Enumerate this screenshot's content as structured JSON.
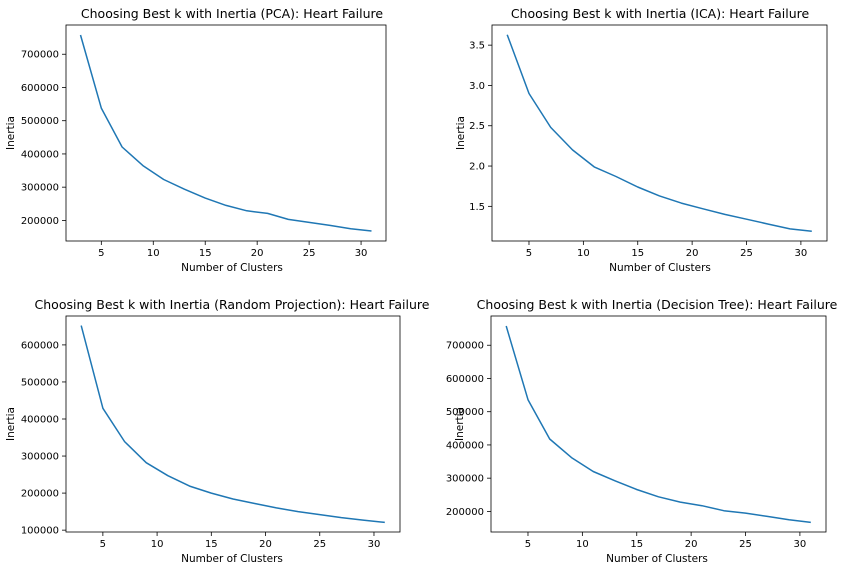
{
  "chart_data": [
    {
      "type": "line",
      "title": "Choosing Best k with Inertia (PCA): Heart Failure",
      "xlabel": "Number of Clusters",
      "ylabel": "Inertia",
      "x": [
        3,
        5,
        7,
        9,
        11,
        13,
        15,
        17,
        19,
        21,
        23,
        25,
        27,
        29,
        31
      ],
      "y": [
        758000,
        538000,
        421000,
        365000,
        323000,
        294000,
        267000,
        245000,
        229000,
        221000,
        203000,
        194000,
        185000,
        175000,
        168000
      ],
      "xlim": [
        1.6,
        32.4
      ],
      "ylim": [
        138000,
        788000
      ],
      "xticks": [
        5,
        10,
        15,
        20,
        25,
        30
      ],
      "yticks": [
        200000,
        300000,
        400000,
        500000,
        600000,
        700000
      ],
      "grid": false,
      "color": "#1f77b4"
    },
    {
      "type": "line",
      "title": "Choosing Best k with Inertia (ICA): Heart Failure",
      "xlabel": "Number of Clusters",
      "ylabel": "Inertia",
      "x": [
        3,
        5,
        7,
        9,
        11,
        13,
        15,
        17,
        19,
        21,
        23,
        25,
        27,
        29,
        31
      ],
      "y": [
        3.63,
        2.9,
        2.48,
        2.2,
        1.99,
        1.87,
        1.74,
        1.63,
        1.54,
        1.47,
        1.4,
        1.34,
        1.28,
        1.22,
        1.19
      ],
      "xlim": [
        1.6,
        32.4
      ],
      "ylim": [
        1.07,
        3.75
      ],
      "xticks": [
        5,
        10,
        15,
        20,
        25,
        30
      ],
      "yticks": [
        1.5,
        2.0,
        2.5,
        3.0,
        3.5
      ],
      "ytick_labels": [
        "1.5",
        "2.0",
        "2.5",
        "3.0",
        "3.5"
      ],
      "grid": false,
      "color": "#1f77b4"
    },
    {
      "type": "line",
      "title": "Choosing Best k with Inertia (Random Projection): Heart Failure",
      "xlabel": "Number of Clusters",
      "ylabel": "Inertia",
      "x": [
        3,
        5,
        7,
        9,
        11,
        13,
        15,
        17,
        19,
        21,
        23,
        25,
        27,
        29,
        31
      ],
      "y": [
        652000,
        429000,
        339000,
        282000,
        247000,
        219000,
        200000,
        184000,
        172000,
        160000,
        150000,
        142000,
        134000,
        127000,
        121000
      ],
      "xlim": [
        1.6,
        32.4
      ],
      "ylim": [
        95000,
        678000
      ],
      "xticks": [
        5,
        10,
        15,
        20,
        25,
        30
      ],
      "yticks": [
        100000,
        200000,
        300000,
        400000,
        500000,
        600000
      ],
      "grid": false,
      "color": "#1f77b4"
    },
    {
      "type": "line",
      "title": "Choosing Best k with Inertia (Decision Tree): Heart Failure",
      "xlabel": "Number of Clusters",
      "ylabel": "Inertia",
      "x": [
        3,
        5,
        7,
        9,
        11,
        13,
        15,
        17,
        19,
        21,
        23,
        25,
        27,
        29,
        31
      ],
      "y": [
        758000,
        536000,
        418000,
        362000,
        320000,
        292000,
        266000,
        244000,
        228000,
        217000,
        202000,
        195000,
        185000,
        175000,
        167000
      ],
      "xlim": [
        1.6,
        32.4
      ],
      "ylim": [
        138000,
        788000
      ],
      "xticks": [
        5,
        10,
        15,
        20,
        25,
        30
      ],
      "yticks": [
        200000,
        300000,
        400000,
        500000,
        600000,
        700000
      ],
      "grid": false,
      "color": "#1f77b4"
    }
  ]
}
